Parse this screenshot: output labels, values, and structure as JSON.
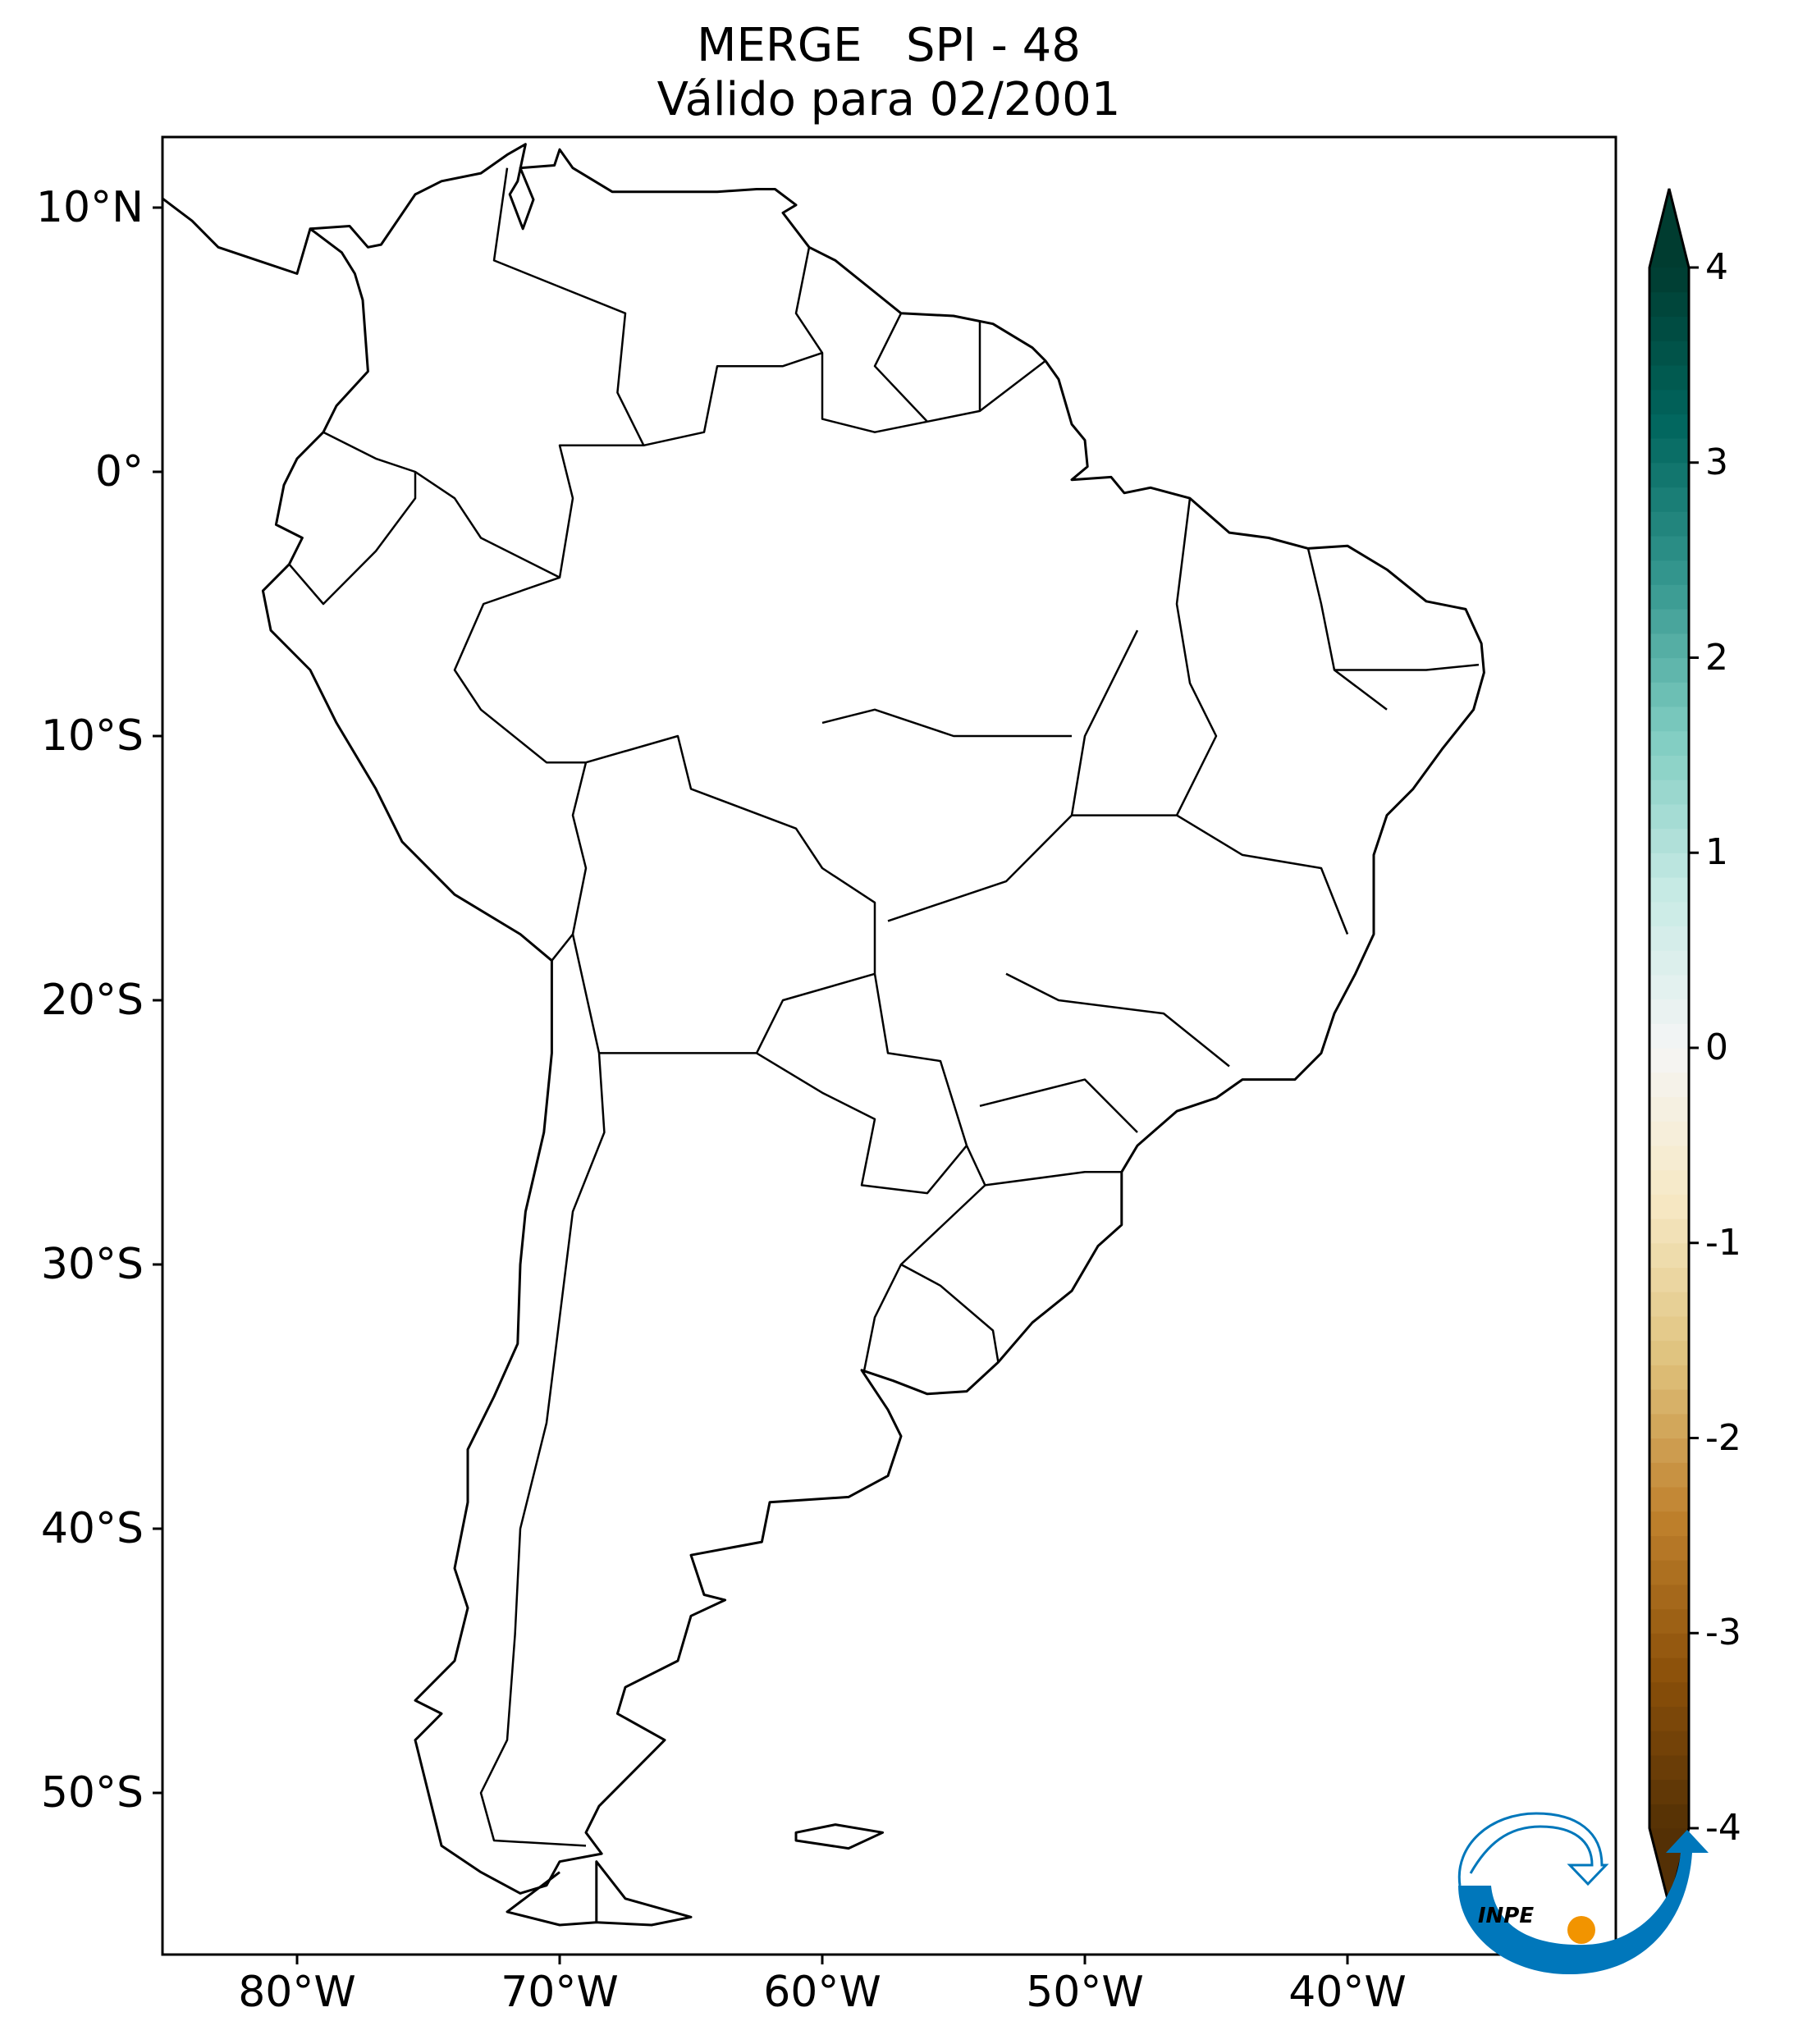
{
  "title": {
    "line1": "MERGE   SPI - 48",
    "line2": "Válido para 02/2001"
  },
  "map": {
    "projection": "PlateCarree",
    "lon_range": [
      -85,
      -30
    ],
    "lat_range": [
      -56,
      12.7
    ],
    "field": "SPI-48 (all zero / blank)",
    "lat_ticks": [
      {
        "value": 10,
        "label": "10°N"
      },
      {
        "value": 0,
        "label": "0°"
      },
      {
        "value": -10,
        "label": "10°S"
      },
      {
        "value": -20,
        "label": "20°S"
      },
      {
        "value": -30,
        "label": "30°S"
      },
      {
        "value": -40,
        "label": "40°S"
      },
      {
        "value": -50,
        "label": "50°S"
      }
    ],
    "lon_ticks": [
      {
        "value": -80,
        "label": "80°W"
      },
      {
        "value": -70,
        "label": "70°W"
      },
      {
        "value": -60,
        "label": "60°W"
      },
      {
        "value": -50,
        "label": "50°W"
      },
      {
        "value": -40,
        "label": "40°W"
      }
    ],
    "line_color": "#000000"
  },
  "colorbar": {
    "colormap": "BrBG",
    "range": [
      -4,
      4
    ],
    "extend": "both",
    "ticks": [
      {
        "value": 4,
        "label": "4"
      },
      {
        "value": 3,
        "label": "3"
      },
      {
        "value": 2,
        "label": "2"
      },
      {
        "value": 1,
        "label": "1"
      },
      {
        "value": 0,
        "label": "0"
      },
      {
        "value": -1,
        "label": "-1"
      },
      {
        "value": -2,
        "label": "-2"
      },
      {
        "value": -3,
        "label": "-3"
      },
      {
        "value": -4,
        "label": "-4"
      }
    ],
    "colors": [
      "#543005",
      "#8c510a",
      "#bf812d",
      "#dfc27d",
      "#f6e8c3",
      "#f5f5f5",
      "#c7eae5",
      "#80cdc1",
      "#35978f",
      "#01665e",
      "#003c30"
    ]
  },
  "logo": {
    "text": "INPE",
    "blue": "#0077bb",
    "orange": "#f29400"
  }
}
